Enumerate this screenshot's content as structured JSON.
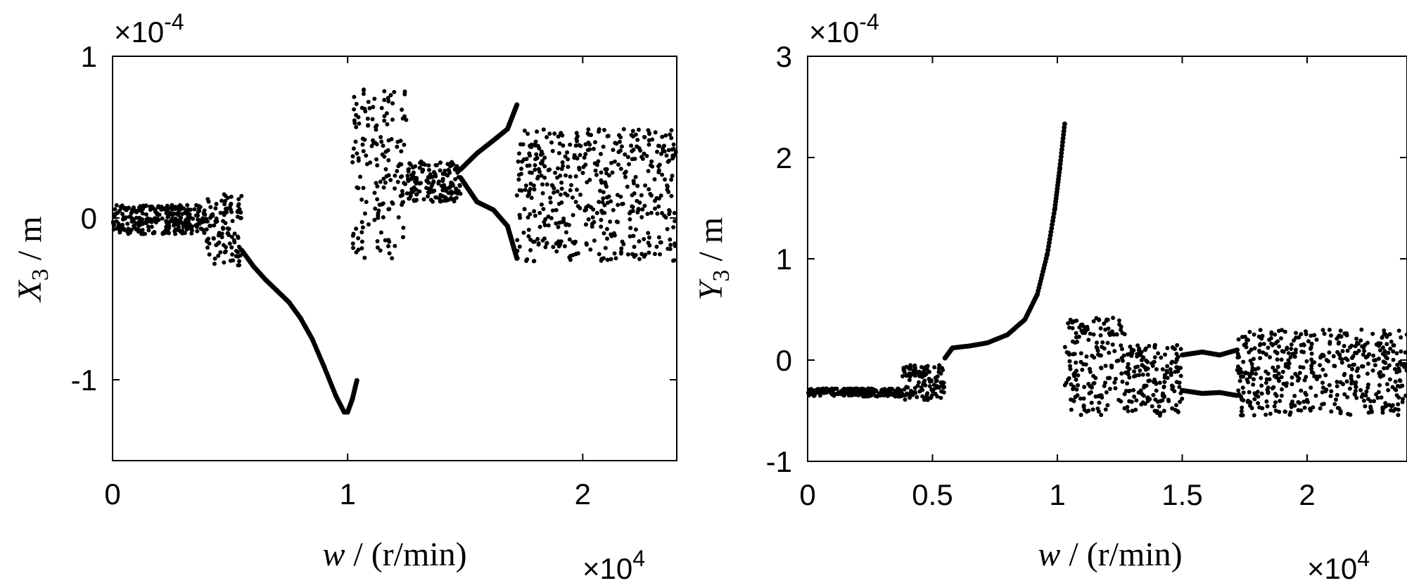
{
  "chart_data": [
    {
      "type": "scatter",
      "title": "",
      "xlabel": "w / (r/min)",
      "xlabel_var": "w",
      "xlabel_unit": " / (r/min)",
      "ylabel_var": "X",
      "ylabel_sub": "3",
      "ylabel_unit": " / m",
      "x_exponent": "×10",
      "x_exponent_power": "4",
      "y_exponent": "×10",
      "y_exponent_power": "-4",
      "xlim": [
        0,
        2.4
      ],
      "ylim": [
        -1.5,
        1
      ],
      "x_ticks": [
        0,
        1,
        2
      ],
      "x_tick_labels": [
        "0",
        "1",
        "2"
      ],
      "y_ticks": [
        -1,
        0,
        1
      ],
      "y_tick_labels": [
        "-1",
        "0",
        "1"
      ],
      "curve": [
        [
          0.55,
          -0.2
        ],
        [
          0.6,
          -0.3
        ],
        [
          0.65,
          -0.38
        ],
        [
          0.7,
          -0.45
        ],
        [
          0.75,
          -0.52
        ],
        [
          0.8,
          -0.62
        ],
        [
          0.85,
          -0.75
        ],
        [
          0.9,
          -0.92
        ],
        [
          0.95,
          -1.1
        ],
        [
          0.985,
          -1.2
        ],
        [
          1.0,
          -1.2
        ],
        [
          1.02,
          -1.12
        ],
        [
          1.04,
          -1.0
        ]
      ],
      "bands": [
        {
          "x": [
            0.0,
            0.4
          ],
          "lo": -0.1,
          "hi": 0.08
        },
        {
          "x": [
            0.4,
            0.55
          ],
          "lo": -0.3,
          "hi": 0.15
        },
        {
          "x": [
            1.02,
            1.25
          ],
          "lo": -0.25,
          "hi": 0.82
        },
        {
          "x": [
            1.25,
            1.48
          ],
          "lo": 0.1,
          "hi": 0.35
        },
        {
          "x": [
            1.72,
            2.4
          ],
          "lo": -0.27,
          "hi": 0.55
        }
      ],
      "branches": [
        [
          [
            1.48,
            0.3
          ],
          [
            1.55,
            0.4
          ],
          [
            1.62,
            0.48
          ],
          [
            1.68,
            0.55
          ],
          [
            1.72,
            0.7
          ]
        ],
        [
          [
            1.48,
            0.25
          ],
          [
            1.55,
            0.1
          ],
          [
            1.62,
            0.05
          ],
          [
            1.68,
            -0.05
          ],
          [
            1.72,
            -0.25
          ]
        ]
      ]
    },
    {
      "type": "scatter",
      "title": "",
      "xlabel": "w / (r/min)",
      "xlabel_var": "w",
      "xlabel_unit": " / (r/min)",
      "ylabel_var": "Y",
      "ylabel_sub": "3",
      "ylabel_unit": " / m",
      "x_exponent": "×10",
      "x_exponent_power": "4",
      "y_exponent": "×10",
      "y_exponent_power": "-4",
      "xlim": [
        0,
        2.4
      ],
      "ylim": [
        -1,
        3
      ],
      "x_ticks": [
        0,
        0.5,
        1,
        1.5,
        2
      ],
      "x_tick_labels": [
        "0",
        "0.5",
        "1",
        "1.5",
        "2"
      ],
      "y_ticks": [
        -1,
        0,
        1,
        2,
        3
      ],
      "y_tick_labels": [
        "-1",
        "0",
        "1",
        "2",
        "3"
      ],
      "curve": [
        [
          0.55,
          0.02
        ],
        [
          0.58,
          0.12
        ],
        [
          0.65,
          0.14
        ],
        [
          0.72,
          0.17
        ],
        [
          0.8,
          0.25
        ],
        [
          0.87,
          0.4
        ],
        [
          0.92,
          0.65
        ],
        [
          0.96,
          1.05
        ],
        [
          0.99,
          1.5
        ],
        [
          1.01,
          1.9
        ],
        [
          1.03,
          2.35
        ]
      ],
      "bands": [
        {
          "x": [
            0.0,
            0.38
          ],
          "lo": -0.36,
          "hi": -0.28
        },
        {
          "x": [
            0.38,
            0.55
          ],
          "lo": -0.4,
          "hi": -0.05
        },
        {
          "x": [
            1.03,
            1.27
          ],
          "lo": -0.55,
          "hi": 0.42
        },
        {
          "x": [
            1.27,
            1.5
          ],
          "lo": -0.55,
          "hi": 0.15
        },
        {
          "x": [
            1.72,
            2.4
          ],
          "lo": -0.55,
          "hi": 0.3
        }
      ],
      "branches": [
        [
          [
            1.5,
            0.05
          ],
          [
            1.58,
            0.08
          ],
          [
            1.65,
            0.05
          ],
          [
            1.72,
            0.1
          ]
        ],
        [
          [
            1.5,
            -0.3
          ],
          [
            1.58,
            -0.33
          ],
          [
            1.65,
            -0.32
          ],
          [
            1.72,
            -0.35
          ]
        ]
      ]
    }
  ]
}
